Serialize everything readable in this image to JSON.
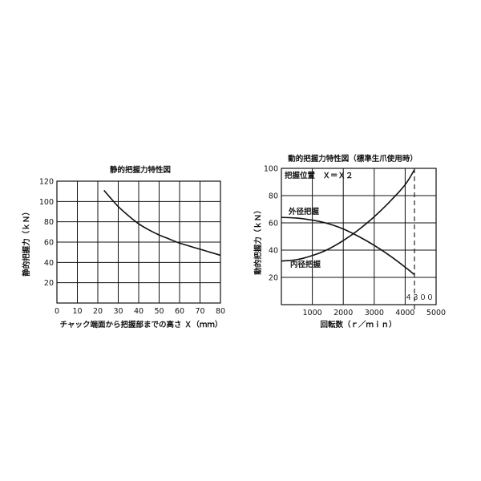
{
  "chart_data": [
    {
      "type": "line",
      "title": "静的把握力特性図",
      "xlabel": "チャック端面から把握部までの高さ Ｘ（ｍｍ）",
      "ylabel": "静的把握力（ｋＮ）",
      "xlim": [
        0,
        80
      ],
      "ylim": [
        0,
        120
      ],
      "x_ticks": [
        "0",
        "10",
        "20",
        "30",
        "40",
        "50",
        "60",
        "70",
        "80"
      ],
      "y_ticks": [
        "20",
        "40",
        "60",
        "80",
        "100",
        "120"
      ],
      "grid": true,
      "series": [
        {
          "x": [
            23,
            26,
            30,
            35,
            40,
            45,
            50,
            55,
            60,
            65,
            70,
            75,
            80
          ],
          "y": [
            111,
            104,
            95,
            86,
            78,
            72,
            67,
            63,
            59,
            56,
            53,
            50,
            47
          ]
        }
      ]
    },
    {
      "type": "line",
      "title": "動的把握力特性図（標準生爪使用時）",
      "xlabel": "回転数（ｒ／ｍｉｎ）",
      "ylabel": "動的把握力（ｋＮ）",
      "xlim": [
        0,
        5000
      ],
      "ylim": [
        0,
        100
      ],
      "x_ticks": [
        "1000",
        "2000",
        "3000",
        "4000",
        "5000"
      ],
      "y_ticks": [
        "20",
        "40",
        "60",
        "80",
        "100"
      ],
      "grid": true,
      "annotations": [
        "把握位置　Ｘ＝Ｘ２",
        "４３００"
      ],
      "max_speed_marker": 4300,
      "series": [
        {
          "name": "外径把握",
          "x": [
            0,
            500,
            1000,
            1500,
            2000,
            2500,
            3000,
            3500,
            4000,
            4300
          ],
          "y": [
            64,
            63.5,
            62,
            59.5,
            55.5,
            50,
            43.5,
            36,
            27.5,
            22
          ]
        },
        {
          "name": "内径把握",
          "x": [
            0,
            500,
            1000,
            1500,
            2000,
            2500,
            3000,
            3500,
            4000,
            4300
          ],
          "y": [
            32,
            33,
            36,
            40.5,
            47,
            55,
            64.5,
            75.5,
            88,
            99
          ]
        }
      ]
    }
  ]
}
